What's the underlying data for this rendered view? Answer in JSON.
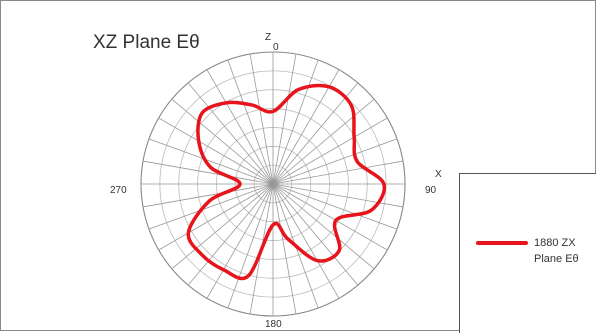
{
  "chart_data": {
    "type": "polar-line",
    "title": "XZ Plane Eθ",
    "axis_labels": {
      "top_axis": "Z",
      "right_axis": "X"
    },
    "angle_tick_labels": [
      "0",
      "90",
      "180",
      "270"
    ],
    "radial_rings": 7,
    "spokes_every_deg": 10,
    "series": [
      {
        "name": "1880 ZX Plane Eθ",
        "color": "#e8141c",
        "theta_deg": [
          0,
          15,
          30,
          45,
          60,
          75,
          90,
          105,
          120,
          135,
          150,
          165,
          180,
          195,
          210,
          225,
          240,
          255,
          270,
          285,
          300,
          315,
          330,
          345
        ],
        "r_rel": [
          0.55,
          0.74,
          0.85,
          0.84,
          0.71,
          0.66,
          0.84,
          0.77,
          0.55,
          0.71,
          0.67,
          0.43,
          0.31,
          0.72,
          0.75,
          0.76,
          0.74,
          0.5,
          0.25,
          0.49,
          0.65,
          0.76,
          0.71,
          0.62
        ]
      }
    ],
    "legend_position": "right"
  }
}
